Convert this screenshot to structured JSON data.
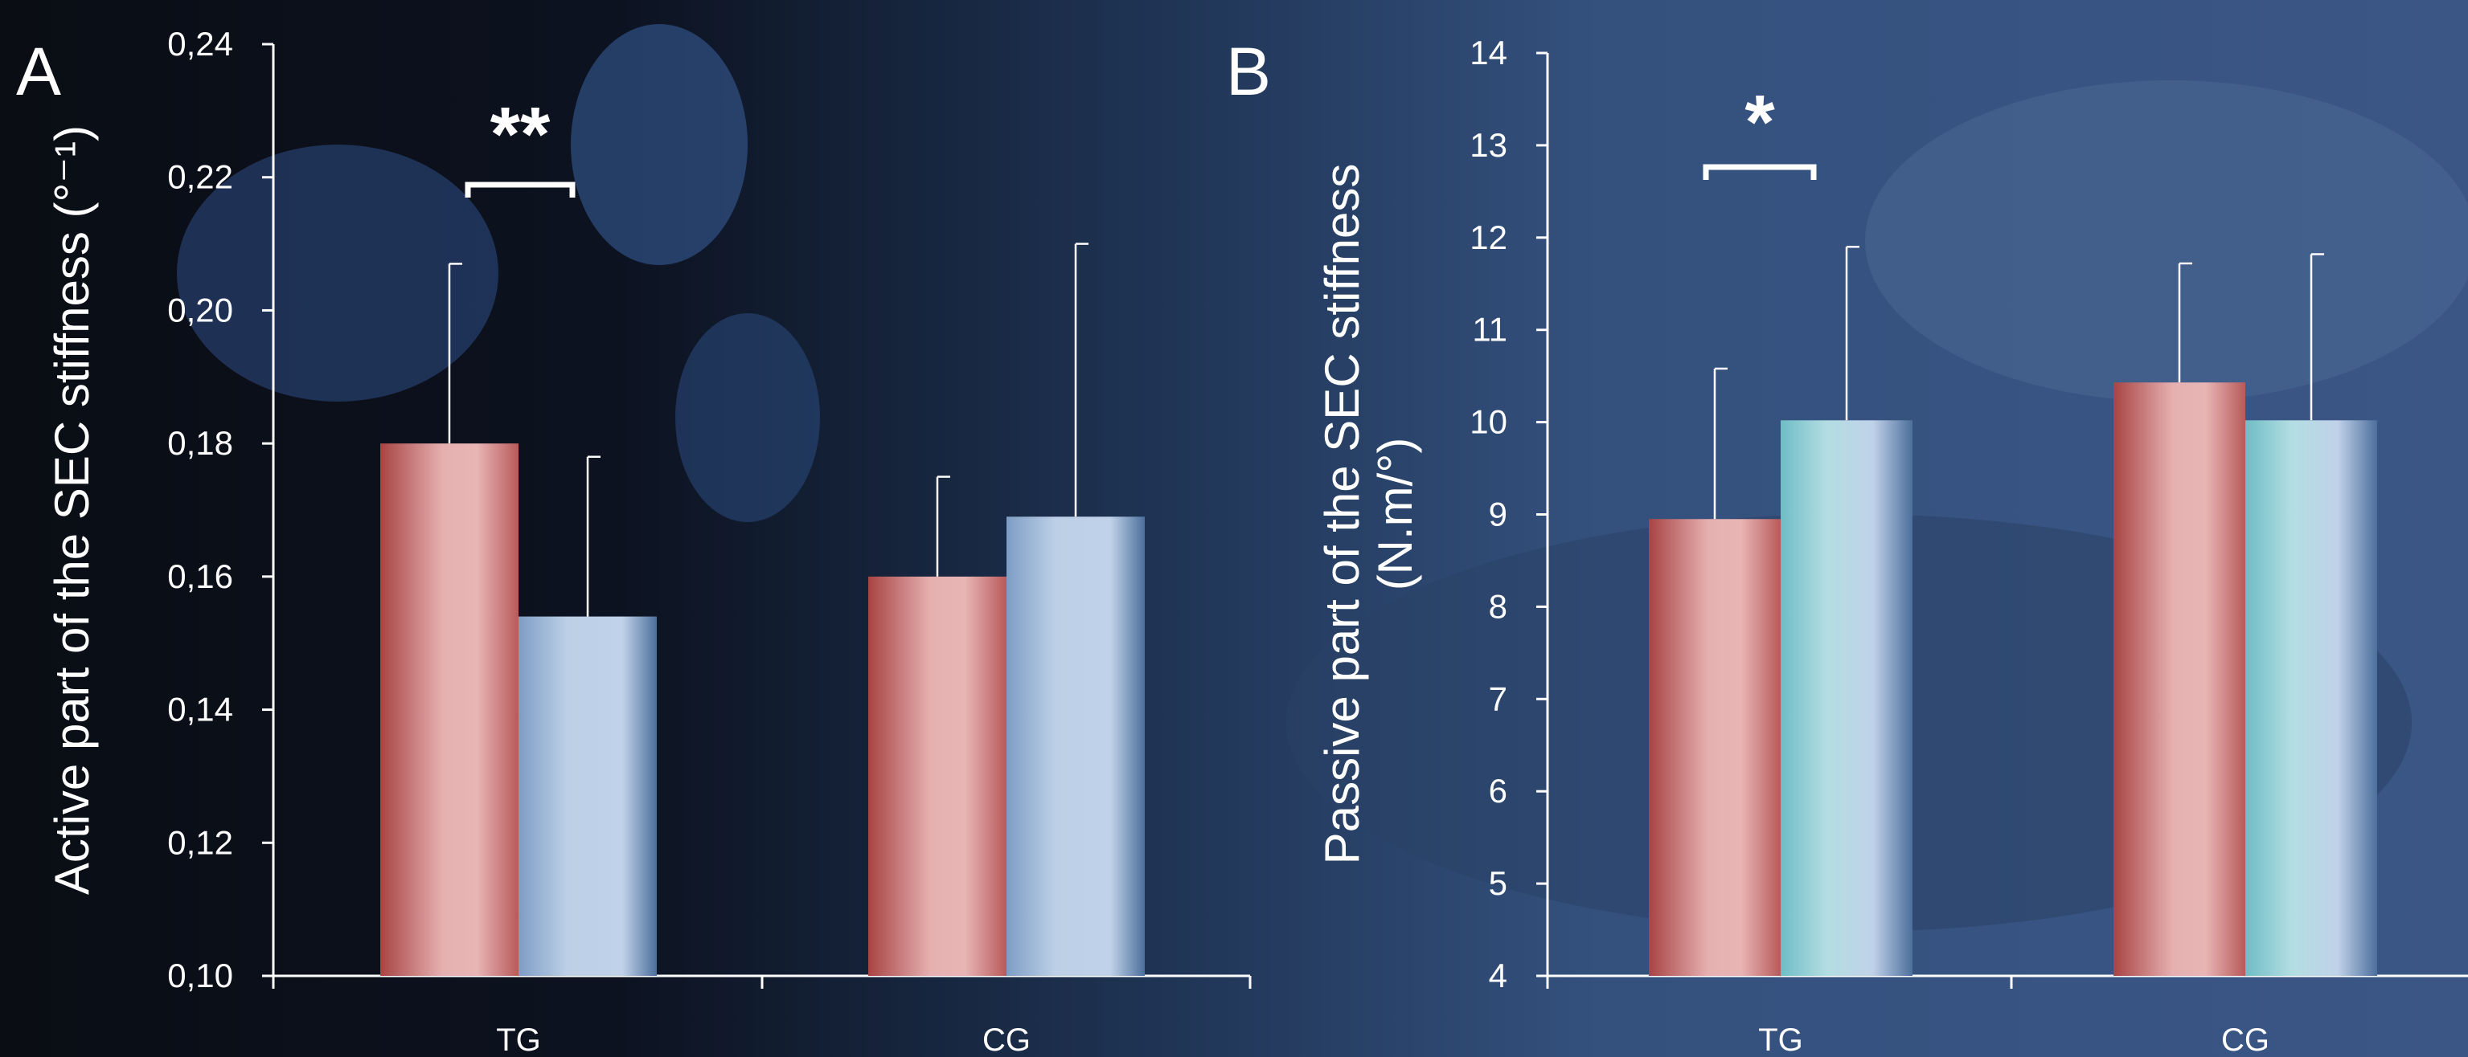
{
  "colors": {
    "pre": "#e3a3a3",
    "pre_edge": "#a84444",
    "post": "#bccfe6",
    "post_edge": "#4c6f9c",
    "post_teal": "#7ec6cf",
    "axis": "#ffffff",
    "text": "#ffffff"
  },
  "chart_data": [
    {
      "type": "bar",
      "panel_label": "A",
      "categories": [
        "TG",
        "CG"
      ],
      "ylabel": "Active part of the SEC stiffness (°⁻¹)",
      "ylim": [
        0.1,
        0.24
      ],
      "yticks": [
        "0,10",
        "0,12",
        "0,14",
        "0,16",
        "0,18",
        "0,20",
        "0,22",
        "0,24"
      ],
      "ytick_values": [
        0.1,
        0.12,
        0.14,
        0.16,
        0.18,
        0.2,
        0.22,
        0.24
      ],
      "series": [
        {
          "values": [
            0.18,
            0.16
          ],
          "errors": [
            0.027,
            0.015
          ],
          "color": "pre"
        },
        {
          "values": [
            0.154,
            0.169
          ],
          "errors": [
            0.024,
            0.041
          ],
          "color": "post"
        }
      ],
      "significance": [
        {
          "category": "TG",
          "label": "**"
        }
      ],
      "grid": false,
      "legend": "none"
    },
    {
      "type": "bar",
      "panel_label": "B",
      "categories": [
        "TG",
        "CG"
      ],
      "ylabel": "Passive part of the SEC stiffness",
      "ylabel_line2": "(N.m/°)",
      "ylim": [
        4,
        14
      ],
      "yticks": [
        "4",
        "5",
        "6",
        "7",
        "8",
        "9",
        "10",
        "11",
        "12",
        "13",
        "14"
      ],
      "ytick_values": [
        4,
        5,
        6,
        7,
        8,
        9,
        10,
        11,
        12,
        13,
        14
      ],
      "series": [
        {
          "values": [
            8.95,
            10.43
          ],
          "errors": [
            1.63,
            1.29
          ],
          "color": "pre"
        },
        {
          "values": [
            10.02,
            10.02
          ],
          "errors": [
            1.88,
            1.8
          ],
          "color": "post"
        }
      ],
      "significance": [
        {
          "category": "TG",
          "label": "*"
        }
      ],
      "grid": false,
      "legend": "none"
    }
  ]
}
